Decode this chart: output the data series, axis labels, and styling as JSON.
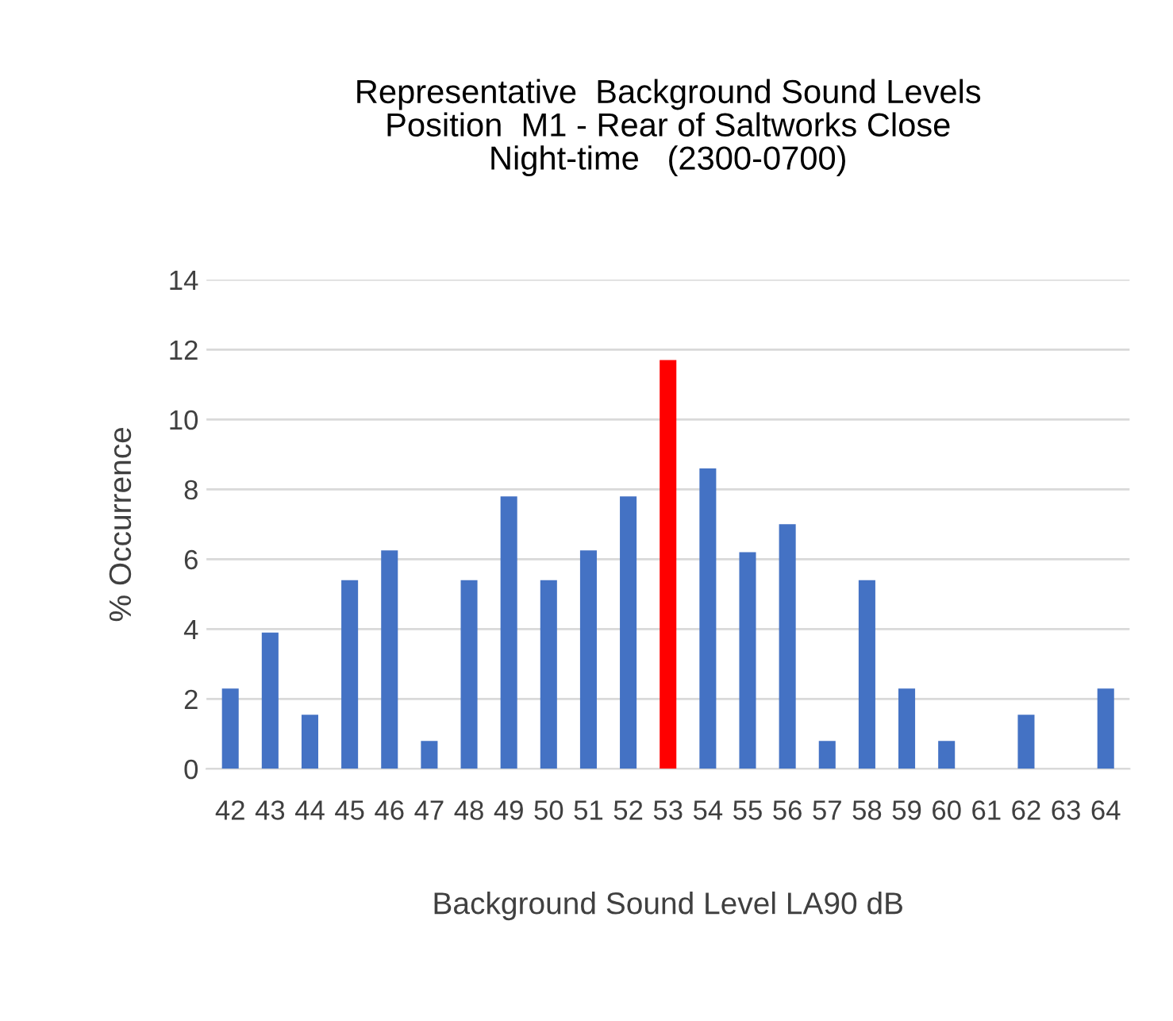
{
  "chart_data": {
    "type": "bar",
    "title": "Representative  Background Sound Levels\nPosition  M1 - Rear of Saltworks Close\nNight-time   (2300-0700)",
    "xlabel": "Background Sound Level LA90 dB",
    "ylabel": "% Occurrence",
    "categories": [
      "42",
      "43",
      "44",
      "45",
      "46",
      "47",
      "48",
      "49",
      "50",
      "51",
      "52",
      "53",
      "54",
      "55",
      "56",
      "57",
      "58",
      "59",
      "60",
      "61",
      "62",
      "63",
      "64"
    ],
    "values": [
      2.3,
      3.9,
      1.55,
      5.4,
      6.25,
      0.8,
      5.4,
      7.8,
      5.4,
      6.25,
      7.8,
      11.7,
      8.6,
      6.2,
      7.0,
      0.8,
      5.4,
      2.3,
      0.8,
      0,
      1.55,
      0,
      2.3
    ],
    "colors": [
      "#4472c4",
      "#4472c4",
      "#4472c4",
      "#4472c4",
      "#4472c4",
      "#4472c4",
      "#4472c4",
      "#4472c4",
      "#4472c4",
      "#4472c4",
      "#4472c4",
      "#ff0000",
      "#4472c4",
      "#4472c4",
      "#4472c4",
      "#4472c4",
      "#4472c4",
      "#4472c4",
      "#4472c4",
      "#4472c4",
      "#4472c4",
      "#4472c4",
      "#4472c4"
    ],
    "ylim": [
      0,
      14
    ],
    "yticks": [
      0,
      2,
      4,
      6,
      8,
      10,
      12,
      14
    ],
    "grid": "y",
    "legend": false
  }
}
